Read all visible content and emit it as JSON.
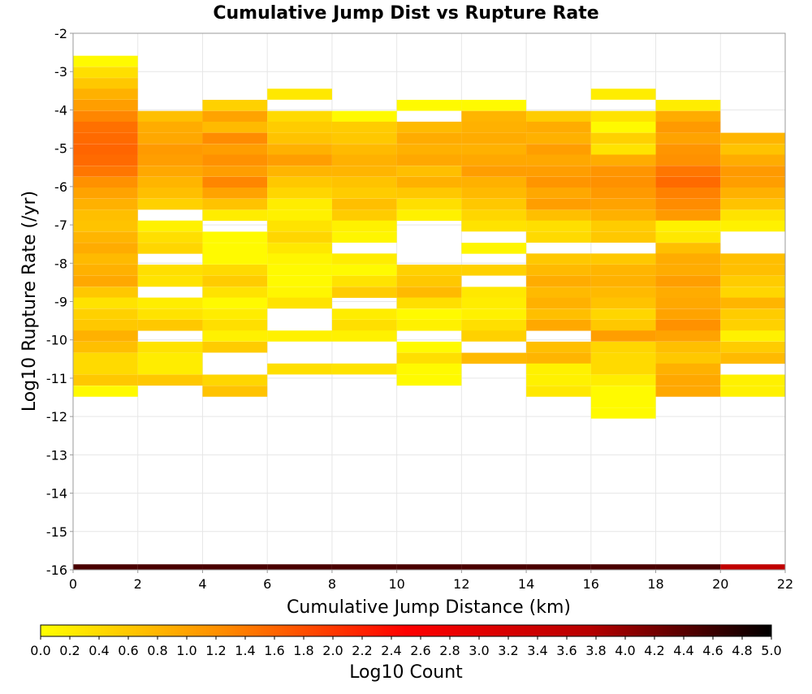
{
  "chart_data": {
    "type": "heatmap",
    "title": "Cumulative Jump Dist vs Rupture Rate",
    "xlabel": "Cumulative Jump Distance (km)",
    "ylabel": "Log10 Rupture Rate (/yr)",
    "xlim": [
      0,
      22
    ],
    "ylim": [
      -16,
      -2
    ],
    "x_ticks": [
      "0",
      "2",
      "4",
      "6",
      "8",
      "10",
      "12",
      "14",
      "16",
      "18",
      "20",
      "22"
    ],
    "y_ticks": [
      "-2",
      "-3",
      "-4",
      "-5",
      "-6",
      "-7",
      "-8",
      "-9",
      "-10",
      "-11",
      "-12",
      "-13",
      "-14",
      "-15",
      "-16"
    ],
    "x_bin_width_km": 2,
    "y_bin_height_log10": 0.287,
    "grid": true,
    "colorbar": {
      "label": "Log10 Count",
      "min": 0.0,
      "max": 5.0,
      "ticks": [
        "0.0",
        "0.2",
        "0.4",
        "0.6",
        "0.8",
        "1.0",
        "1.2",
        "1.4",
        "1.6",
        "1.8",
        "2.0",
        "2.2",
        "2.4",
        "2.6",
        "2.8",
        "3.0",
        "3.2",
        "3.4",
        "3.6",
        "3.8",
        "4.0",
        "4.2",
        "4.4",
        "4.6",
        "4.8",
        "5.0"
      ],
      "colors": [
        "#ffff00",
        "#ff8c00",
        "#ff0000",
        "#b80000",
        "#000000"
      ],
      "placement": "bottom"
    },
    "columns": [
      {
        "x_bin": "0-2",
        "cells": [
          [
            -2.73,
            0.05
          ],
          [
            -3.02,
            0.35
          ],
          [
            -3.31,
            0.6
          ],
          [
            -3.59,
            0.85
          ],
          [
            -3.88,
            1.05
          ],
          [
            -4.17,
            1.3
          ],
          [
            -4.45,
            1.5
          ],
          [
            -4.74,
            1.55
          ],
          [
            -5.03,
            1.6
          ],
          [
            -5.31,
            1.55
          ],
          [
            -5.6,
            1.45
          ],
          [
            -5.89,
            1.2
          ],
          [
            -6.17,
            1.0
          ],
          [
            -6.46,
            0.85
          ],
          [
            -6.75,
            0.7
          ],
          [
            -7.03,
            0.65
          ],
          [
            -7.32,
            0.8
          ],
          [
            -7.61,
            0.9
          ],
          [
            -7.89,
            0.75
          ],
          [
            -8.18,
            0.85
          ],
          [
            -8.47,
            0.95
          ],
          [
            -8.76,
            0.6
          ],
          [
            -9.04,
            0.3
          ],
          [
            -9.33,
            0.5
          ],
          [
            -9.62,
            0.6
          ],
          [
            -9.9,
            0.85
          ],
          [
            -10.19,
            0.7
          ],
          [
            -10.48,
            0.4
          ],
          [
            -10.76,
            0.4
          ],
          [
            -11.05,
            0.6
          ],
          [
            -11.34,
            0.05
          ],
          [
            -16.0,
            4.5
          ]
        ]
      },
      {
        "x_bin": "2-4",
        "cells": [
          [
            -4.17,
            0.7
          ],
          [
            -4.45,
            0.9
          ],
          [
            -4.74,
            0.95
          ],
          [
            -5.03,
            1.1
          ],
          [
            -5.31,
            1.05
          ],
          [
            -5.6,
            0.95
          ],
          [
            -5.89,
            0.8
          ],
          [
            -6.17,
            0.7
          ],
          [
            -6.46,
            0.5
          ],
          [
            -7.03,
            0.15
          ],
          [
            -7.32,
            0.35
          ],
          [
            -7.61,
            0.45
          ],
          [
            -8.18,
            0.35
          ],
          [
            -8.47,
            0.3
          ],
          [
            -9.04,
            0.2
          ],
          [
            -9.33,
            0.3
          ],
          [
            -9.62,
            0.6
          ],
          [
            -10.19,
            0.3
          ],
          [
            -10.48,
            0.2
          ],
          [
            -10.76,
            0.2
          ],
          [
            -11.05,
            0.6
          ],
          [
            -16.0,
            4.5
          ]
        ]
      },
      {
        "x_bin": "4-6",
        "cells": [
          [
            -3.88,
            0.5
          ],
          [
            -4.17,
            1.0
          ],
          [
            -4.45,
            0.75
          ],
          [
            -4.74,
            1.25
          ],
          [
            -5.03,
            1.05
          ],
          [
            -5.31,
            1.2
          ],
          [
            -5.6,
            1.05
          ],
          [
            -5.89,
            1.3
          ],
          [
            -6.17,
            1.0
          ],
          [
            -6.46,
            0.65
          ],
          [
            -6.75,
            0.2
          ],
          [
            -7.32,
            0.05
          ],
          [
            -7.61,
            0.05
          ],
          [
            -7.89,
            0.05
          ],
          [
            -8.18,
            0.4
          ],
          [
            -8.47,
            0.55
          ],
          [
            -8.76,
            0.3
          ],
          [
            -9.04,
            0.05
          ],
          [
            -9.33,
            0.2
          ],
          [
            -9.62,
            0.35
          ],
          [
            -9.9,
            0.15
          ],
          [
            -10.19,
            0.55
          ],
          [
            -11.05,
            0.45
          ],
          [
            -11.34,
            0.65
          ],
          [
            -16.0,
            4.5
          ]
        ]
      },
      {
        "x_bin": "6-8",
        "cells": [
          [
            -3.59,
            0.25
          ],
          [
            -4.17,
            0.4
          ],
          [
            -4.45,
            0.55
          ],
          [
            -4.74,
            0.65
          ],
          [
            -5.03,
            0.85
          ],
          [
            -5.31,
            1.05
          ],
          [
            -5.6,
            0.8
          ],
          [
            -5.89,
            0.6
          ],
          [
            -6.17,
            0.45
          ],
          [
            -6.46,
            0.2
          ],
          [
            -6.75,
            0.15
          ],
          [
            -7.03,
            0.3
          ],
          [
            -7.32,
            0.45
          ],
          [
            -7.61,
            0.25
          ],
          [
            -7.89,
            0.1
          ],
          [
            -8.18,
            0.05
          ],
          [
            -8.47,
            0.05
          ],
          [
            -8.76,
            0.1
          ],
          [
            -9.04,
            0.3
          ],
          [
            -9.9,
            0.15
          ],
          [
            -10.76,
            0.35
          ],
          [
            -16.0,
            4.5
          ]
        ]
      },
      {
        "x_bin": "8-10",
        "cells": [
          [
            -4.17,
            0.05
          ],
          [
            -4.45,
            0.55
          ],
          [
            -4.74,
            0.6
          ],
          [
            -5.03,
            0.75
          ],
          [
            -5.31,
            0.85
          ],
          [
            -5.6,
            0.8
          ],
          [
            -5.89,
            0.65
          ],
          [
            -6.17,
            0.55
          ],
          [
            -6.46,
            0.7
          ],
          [
            -6.75,
            0.55
          ],
          [
            -7.03,
            0.15
          ],
          [
            -7.32,
            0.1
          ],
          [
            -7.89,
            0.2
          ],
          [
            -8.18,
            0.05
          ],
          [
            -8.47,
            0.3
          ],
          [
            -8.76,
            0.55
          ],
          [
            -9.33,
            0.2
          ],
          [
            -9.62,
            0.35
          ],
          [
            -9.9,
            0.15
          ],
          [
            -10.76,
            0.3
          ],
          [
            -16.0,
            4.5
          ]
        ]
      },
      {
        "x_bin": "10-12",
        "cells": [
          [
            -3.88,
            0.05
          ],
          [
            -4.45,
            0.75
          ],
          [
            -4.74,
            0.9
          ],
          [
            -5.03,
            0.85
          ],
          [
            -5.31,
            0.95
          ],
          [
            -5.6,
            0.7
          ],
          [
            -5.89,
            0.85
          ],
          [
            -6.17,
            0.6
          ],
          [
            -6.46,
            0.35
          ],
          [
            -6.75,
            0.15
          ],
          [
            -8.18,
            0.5
          ],
          [
            -8.47,
            0.6
          ],
          [
            -8.76,
            0.75
          ],
          [
            -9.04,
            0.35
          ],
          [
            -9.33,
            0.05
          ],
          [
            -9.62,
            0.15
          ],
          [
            -10.19,
            0.05
          ],
          [
            -10.48,
            0.35
          ],
          [
            -10.76,
            0.05
          ],
          [
            -11.05,
            0.05
          ],
          [
            -16.0,
            4.5
          ]
        ]
      },
      {
        "x_bin": "12-14",
        "cells": [
          [
            -3.88,
            0.05
          ],
          [
            -4.17,
            0.8
          ],
          [
            -4.45,
            0.85
          ],
          [
            -4.74,
            0.9
          ],
          [
            -5.03,
            0.85
          ],
          [
            -5.31,
            0.95
          ],
          [
            -5.6,
            1.05
          ],
          [
            -5.89,
            0.85
          ],
          [
            -6.17,
            0.75
          ],
          [
            -6.46,
            0.6
          ],
          [
            -6.75,
            0.45
          ],
          [
            -7.03,
            0.3
          ],
          [
            -7.61,
            0.1
          ],
          [
            -8.18,
            0.5
          ],
          [
            -8.76,
            0.25
          ],
          [
            -9.04,
            0.2
          ],
          [
            -9.33,
            0.15
          ],
          [
            -9.62,
            0.35
          ],
          [
            -9.9,
            0.5
          ],
          [
            -10.48,
            0.75
          ],
          [
            -16.0,
            4.5
          ]
        ]
      },
      {
        "x_bin": "14-16",
        "cells": [
          [
            -4.17,
            0.55
          ],
          [
            -4.45,
            0.9
          ],
          [
            -4.74,
            0.85
          ],
          [
            -5.03,
            1.05
          ],
          [
            -5.31,
            0.95
          ],
          [
            -5.6,
            1.05
          ],
          [
            -5.89,
            1.15
          ],
          [
            -6.17,
            0.95
          ],
          [
            -6.46,
            1.05
          ],
          [
            -6.75,
            0.7
          ],
          [
            -7.03,
            0.35
          ],
          [
            -7.32,
            0.4
          ],
          [
            -7.89,
            0.6
          ],
          [
            -8.18,
            0.75
          ],
          [
            -8.47,
            0.9
          ],
          [
            -8.76,
            0.75
          ],
          [
            -9.04,
            0.85
          ],
          [
            -9.33,
            0.7
          ],
          [
            -9.62,
            0.95
          ],
          [
            -10.19,
            0.7
          ],
          [
            -10.48,
            0.8
          ],
          [
            -10.76,
            0.15
          ],
          [
            -11.05,
            0.15
          ],
          [
            -11.34,
            0.25
          ],
          [
            -16.0,
            4.5
          ]
        ]
      },
      {
        "x_bin": "16-18",
        "cells": [
          [
            -3.59,
            0.2
          ],
          [
            -4.17,
            0.3
          ],
          [
            -4.45,
            0.05
          ],
          [
            -4.74,
            0.5
          ],
          [
            -5.03,
            0.3
          ],
          [
            -5.31,
            0.9
          ],
          [
            -5.6,
            1.15
          ],
          [
            -5.89,
            1.2
          ],
          [
            -6.17,
            1.1
          ],
          [
            -6.46,
            1.0
          ],
          [
            -6.75,
            0.85
          ],
          [
            -7.03,
            0.55
          ],
          [
            -7.32,
            0.6
          ],
          [
            -7.89,
            0.6
          ],
          [
            -8.18,
            0.8
          ],
          [
            -8.47,
            0.85
          ],
          [
            -8.76,
            0.75
          ],
          [
            -9.04,
            0.65
          ],
          [
            -9.33,
            0.45
          ],
          [
            -9.62,
            0.6
          ],
          [
            -9.9,
            1.05
          ],
          [
            -10.19,
            0.45
          ],
          [
            -10.48,
            0.4
          ],
          [
            -10.76,
            0.4
          ],
          [
            -11.05,
            0.2
          ],
          [
            -11.34,
            0.05
          ],
          [
            -11.62,
            0.05
          ],
          [
            -11.91,
            0.05
          ],
          [
            -16.0,
            4.5
          ]
        ]
      },
      {
        "x_bin": "18-20",
        "cells": [
          [
            -3.88,
            0.2
          ],
          [
            -4.17,
            0.9
          ],
          [
            -4.45,
            1.1
          ],
          [
            -4.74,
            1.0
          ],
          [
            -5.03,
            1.15
          ],
          [
            -5.31,
            1.2
          ],
          [
            -5.6,
            1.45
          ],
          [
            -5.89,
            1.55
          ],
          [
            -6.17,
            1.35
          ],
          [
            -6.46,
            1.25
          ],
          [
            -6.75,
            1.1
          ],
          [
            -7.03,
            0.15
          ],
          [
            -7.32,
            0.25
          ],
          [
            -7.61,
            0.7
          ],
          [
            -7.89,
            0.9
          ],
          [
            -8.18,
            0.9
          ],
          [
            -8.47,
            1.05
          ],
          [
            -8.76,
            0.9
          ],
          [
            -9.04,
            0.95
          ],
          [
            -9.33,
            1.0
          ],
          [
            -9.62,
            1.2
          ],
          [
            -9.9,
            1.0
          ],
          [
            -10.19,
            0.7
          ],
          [
            -10.48,
            0.6
          ],
          [
            -10.76,
            0.85
          ],
          [
            -11.05,
            0.95
          ],
          [
            -11.34,
            0.95
          ],
          [
            -16.0,
            4.5
          ]
        ]
      },
      {
        "x_bin": "20-22",
        "cells": [
          [
            -4.74,
            0.8
          ],
          [
            -5.03,
            0.65
          ],
          [
            -5.31,
            0.9
          ],
          [
            -5.6,
            1.1
          ],
          [
            -5.89,
            1.05
          ],
          [
            -6.17,
            0.85
          ],
          [
            -6.46,
            0.65
          ],
          [
            -6.75,
            0.3
          ],
          [
            -7.03,
            0.15
          ],
          [
            -7.89,
            0.7
          ],
          [
            -8.18,
            0.7
          ],
          [
            -8.47,
            0.55
          ],
          [
            -8.76,
            0.45
          ],
          [
            -9.04,
            0.8
          ],
          [
            -9.33,
            0.55
          ],
          [
            -9.62,
            0.5
          ],
          [
            -9.9,
            0.15
          ],
          [
            -10.19,
            0.55
          ],
          [
            -10.48,
            0.75
          ],
          [
            -11.05,
            0.15
          ],
          [
            -11.34,
            0.15
          ],
          [
            -16.0,
            3.6
          ]
        ]
      }
    ]
  }
}
